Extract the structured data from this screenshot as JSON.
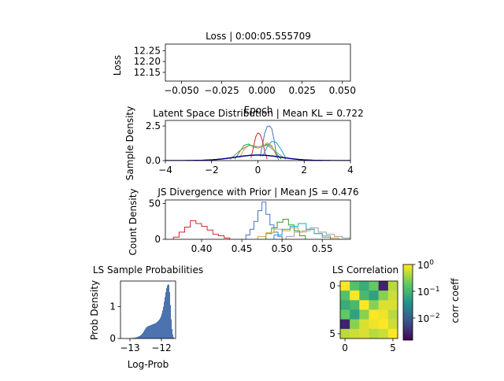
{
  "chart_data": [
    {
      "id": "loss",
      "type": "line",
      "title": "Loss | 0:00:05.555709",
      "xlabel": "Epoch",
      "ylabel": "Loss",
      "xlim": [
        -0.06,
        0.055
      ],
      "ylim": [
        12.11,
        12.28
      ],
      "xticks": [
        -0.05,
        -0.025,
        0.0,
        0.025,
        0.05
      ],
      "xtick_labels": [
        "−0.050",
        "−0.025",
        "0.000",
        "0.025",
        "0.050"
      ],
      "yticks": [
        12.15,
        12.2,
        12.25
      ],
      "ytick_labels": [
        "12.15",
        "12.20",
        "12.25"
      ],
      "series": []
    },
    {
      "id": "latent",
      "type": "line",
      "title": "Latent Space Distribution | Mean KL = 0.722",
      "xlabel": "",
      "ylabel": "Sample Density",
      "xlim": [
        -4,
        4
      ],
      "ylim": [
        0,
        2.9
      ],
      "xticks": [
        -4,
        -2,
        0,
        2,
        4
      ],
      "xtick_labels": [
        "−4",
        "−2",
        "0",
        "2",
        "4"
      ],
      "yticks": [
        0,
        2.5
      ],
      "ytick_labels": [
        "0.0",
        "2.5"
      ],
      "prior": {
        "color": "#00008b",
        "mean": 0,
        "std": 1
      },
      "series": [
        {
          "color": "#4472c4",
          "x": [
            0.1,
            0.2,
            0.3,
            0.4,
            0.5,
            0.6,
            0.7,
            0.8,
            0.9
          ],
          "y": [
            0.3,
            1.2,
            2.0,
            2.45,
            2.5,
            2.3,
            1.5,
            0.4,
            0.05
          ]
        },
        {
          "color": "#d62728",
          "x": [
            -0.3,
            -0.2,
            -0.1,
            0.0,
            0.1,
            0.2,
            0.3,
            0.4
          ],
          "y": [
            0.2,
            0.9,
            1.7,
            2.0,
            1.9,
            1.4,
            0.6,
            0.1
          ]
        },
        {
          "color": "#2ca02c",
          "x": [
            -1.0,
            -0.8,
            -0.6,
            -0.4,
            -0.2,
            0.0,
            0.2,
            0.4,
            0.6,
            0.8,
            1.0
          ],
          "y": [
            0.1,
            0.6,
            1.1,
            1.2,
            1.0,
            0.9,
            1.0,
            1.2,
            1.0,
            0.5,
            0.1
          ]
        },
        {
          "color": "#e6a03c",
          "x": [
            -0.8,
            -0.6,
            -0.4,
            -0.2,
            0.0,
            0.2,
            0.4,
            0.6,
            0.8
          ],
          "y": [
            0.2,
            0.8,
            1.1,
            1.1,
            0.9,
            1.0,
            1.3,
            1.1,
            0.3
          ]
        },
        {
          "color": "#17a2d8",
          "x": [
            0.2,
            0.4,
            0.6,
            0.8,
            1.0,
            1.2
          ],
          "y": [
            0.3,
            1.0,
            1.4,
            1.3,
            0.8,
            0.2
          ]
        },
        {
          "color": "#8c8c8c",
          "x": [
            -1.2,
            -0.8,
            -0.4,
            0.0,
            0.4,
            0.8,
            1.2
          ],
          "y": [
            0.1,
            0.7,
            1.1,
            1.0,
            1.1,
            0.6,
            0.1
          ]
        }
      ]
    },
    {
      "id": "js",
      "type": "histogram",
      "title": "JS Divergence with Prior | Mean JS = 0.476",
      "xlabel": "",
      "ylabel": "Count Density",
      "xlim": [
        0.355,
        0.585
      ],
      "ylim": [
        0,
        55
      ],
      "xticks": [
        0.4,
        0.45,
        0.5,
        0.55
      ],
      "xtick_labels": [
        "0.40",
        "0.45",
        "0.50",
        "0.55"
      ],
      "yticks": [
        0,
        50
      ],
      "ytick_labels": [
        "0",
        "50"
      ],
      "series": [
        {
          "color": "#d62728",
          "bins": [
            0.365,
            0.372,
            0.379,
            0.386,
            0.393,
            0.4,
            0.407,
            0.414,
            0.421,
            0.428,
            0.435
          ],
          "counts": [
            3,
            10,
            17,
            26,
            22,
            18,
            13,
            7,
            5,
            2
          ]
        },
        {
          "color": "#4472c4",
          "bins": [
            0.455,
            0.46,
            0.465,
            0.47,
            0.475,
            0.48,
            0.485,
            0.49,
            0.495,
            0.5
          ],
          "counts": [
            6,
            14,
            25,
            40,
            52,
            35,
            20,
            10,
            4
          ]
        },
        {
          "color": "#2ca02c",
          "bins": [
            0.48,
            0.487,
            0.494,
            0.501,
            0.508,
            0.515,
            0.522,
            0.529
          ],
          "counts": [
            8,
            16,
            24,
            28,
            20,
            12,
            5
          ]
        },
        {
          "color": "#e6a03c",
          "bins": [
            0.47,
            0.48,
            0.49,
            0.5,
            0.51,
            0.52,
            0.53,
            0.54,
            0.55,
            0.56,
            0.57
          ],
          "counts": [
            4,
            9,
            14,
            12,
            16,
            10,
            14,
            8,
            5,
            2
          ]
        },
        {
          "color": "#17a2d8",
          "bins": [
            0.49,
            0.5,
            0.51,
            0.52,
            0.53,
            0.54,
            0.55,
            0.56
          ],
          "counts": [
            6,
            14,
            18,
            22,
            14,
            8,
            3
          ]
        },
        {
          "color": "#9aa0a6",
          "bins": [
            0.505,
            0.515,
            0.525,
            0.535,
            0.545,
            0.555,
            0.565,
            0.575,
            0.585
          ],
          "counts": [
            4,
            10,
            12,
            16,
            10,
            7,
            4,
            2
          ]
        }
      ]
    },
    {
      "id": "probs",
      "type": "histogram",
      "title": "LS Sample Probabilities",
      "xlabel": "Log-Prob",
      "ylabel": "Prob Density",
      "xlim": [
        -13.3,
        -11.55
      ],
      "ylim": [
        0,
        1.8
      ],
      "xticks": [
        -13,
        -12
      ],
      "xtick_labels": [
        "−13",
        "−12"
      ],
      "yticks": [
        0,
        1
      ],
      "ytick_labels": [
        "0",
        "1"
      ],
      "color": "#4c72b0",
      "x_start": -13.0,
      "bin_width": 0.025,
      "values": [
        0.01,
        0.01,
        0.01,
        0.02,
        0.02,
        0.02,
        0.03,
        0.03,
        0.04,
        0.05,
        0.06,
        0.07,
        0.08,
        0.1,
        0.12,
        0.15,
        0.18,
        0.22,
        0.26,
        0.3,
        0.34,
        0.36,
        0.38,
        0.39,
        0.4,
        0.41,
        0.42,
        0.43,
        0.44,
        0.45,
        0.46,
        0.47,
        0.48,
        0.5,
        0.52,
        0.54,
        0.57,
        0.6,
        0.64,
        0.7,
        0.78,
        0.88,
        1.0,
        1.15,
        1.3,
        1.45,
        1.58,
        1.66,
        1.7,
        1.68,
        1.45,
        1.05,
        0.6,
        0.3,
        0.12,
        0.04
      ]
    },
    {
      "id": "corr",
      "type": "heatmap",
      "title": "LS Correlation",
      "xlabel": "",
      "ylabel": "",
      "xticks": [
        0,
        5
      ],
      "yticks": [
        0,
        5
      ],
      "xtick_labels": [
        "0",
        "5"
      ],
      "ytick_labels": [
        "0",
        "5"
      ],
      "colorbar_label": "corr coeff",
      "colorbar_scale": "log",
      "colorbar_ticks": [
        "10^0",
        "10^-1",
        "10^-2"
      ],
      "colorbar_tick_values": [
        1,
        0.1,
        0.01
      ],
      "colorbar_range": [
        0.0015,
        1
      ],
      "matrix": [
        [
          1.0,
          0.15,
          0.08,
          0.2,
          0.003,
          0.5
        ],
        [
          0.15,
          1.0,
          0.12,
          0.06,
          0.3,
          0.6
        ],
        [
          0.08,
          0.12,
          1.0,
          0.3,
          0.7,
          0.7
        ],
        [
          0.2,
          0.06,
          0.3,
          1.0,
          0.85,
          0.5
        ],
        [
          0.003,
          0.3,
          0.7,
          0.85,
          1.0,
          0.6
        ],
        [
          0.5,
          0.6,
          0.7,
          0.5,
          0.6,
          1.0
        ]
      ]
    }
  ]
}
